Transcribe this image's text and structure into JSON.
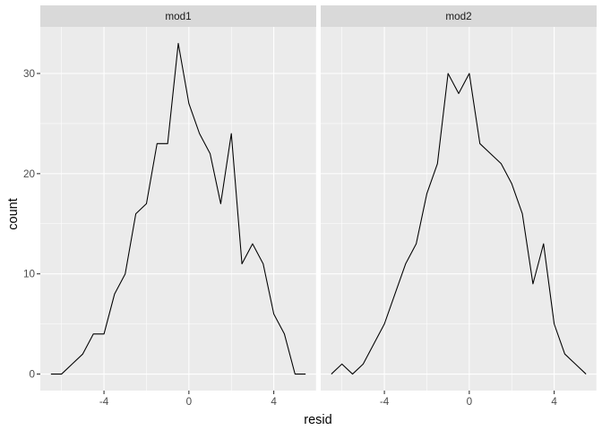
{
  "chart_data": {
    "type": "line",
    "xlabel": "resid",
    "ylabel": "count",
    "xlim": [
      -7.0,
      6.0
    ],
    "ylim": [
      -1.65,
      34.65
    ],
    "x_ticks": [
      -4,
      0,
      4
    ],
    "x_tick_labels": [
      "-4",
      "0",
      "4"
    ],
    "y_ticks": [
      0,
      10,
      20,
      30
    ],
    "y_tick_labels": [
      "0",
      "10",
      "20",
      "30"
    ],
    "grid": true,
    "facets": [
      {
        "name": "mod1",
        "x": [
          -6.5,
          -6.0,
          -5.5,
          -5.0,
          -4.5,
          -4.0,
          -3.5,
          -3.0,
          -2.5,
          -2.0,
          -1.5,
          -1.0,
          -0.5,
          0.0,
          0.5,
          1.0,
          1.5,
          2.0,
          2.5,
          3.0,
          3.5,
          4.0,
          4.5,
          5.0,
          5.5
        ],
        "values": [
          0,
          0,
          1,
          2,
          4,
          4,
          8,
          10,
          16,
          17,
          23,
          23,
          33,
          27,
          24,
          22,
          17,
          24,
          11,
          13,
          11,
          6,
          4,
          0,
          0
        ]
      },
      {
        "name": "mod2",
        "x": [
          -6.5,
          -6.0,
          -5.5,
          -5.0,
          -4.5,
          -4.0,
          -3.5,
          -3.0,
          -2.5,
          -2.0,
          -1.5,
          -1.0,
          -0.5,
          0.0,
          0.5,
          1.0,
          1.5,
          2.0,
          2.5,
          3.0,
          3.5,
          4.0,
          4.5,
          5.0,
          5.5
        ],
        "values": [
          0,
          1,
          0,
          1,
          3,
          5,
          8,
          11,
          13,
          18,
          21,
          30,
          28,
          30,
          23,
          22,
          21,
          19,
          16,
          9,
          13,
          5,
          2,
          1,
          0
        ]
      }
    ]
  }
}
